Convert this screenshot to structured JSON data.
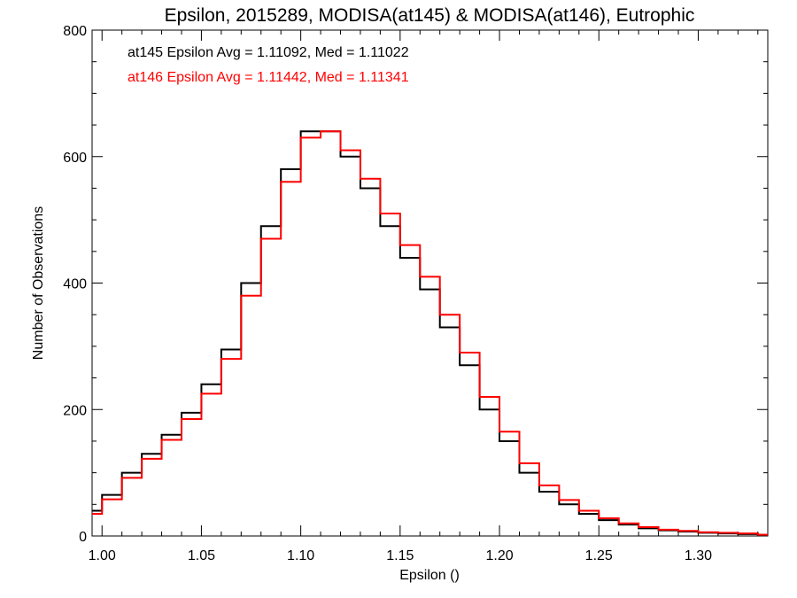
{
  "chart_data": {
    "type": "line",
    "title": "Epsilon, 2015289, MODISA(at145) & MODISA(at146), Eutrophic",
    "xlabel": "Epsilon ()",
    "ylabel": "Number of Observations",
    "xlim": [
      0.995,
      1.335
    ],
    "ylim": [
      0,
      800
    ],
    "x_ticks": [
      1.0,
      1.05,
      1.1,
      1.15,
      1.2,
      1.25,
      1.3
    ],
    "x_tick_labels": [
      "1.00",
      "1.05",
      "1.10",
      "1.15",
      "1.20",
      "1.25",
      "1.30"
    ],
    "y_ticks": [
      0,
      200,
      400,
      600,
      800
    ],
    "y_tick_labels": [
      "0",
      "200",
      "400",
      "600",
      "800"
    ],
    "grid": false,
    "bin_width": 0.01,
    "series": [
      {
        "name": "at145",
        "color": "#000000",
        "annotation": "at145 Epsilon Avg = 1.11092, Med = 1.11022",
        "x": [
          0.995,
          1.005,
          1.015,
          1.025,
          1.035,
          1.045,
          1.055,
          1.065,
          1.075,
          1.085,
          1.095,
          1.105,
          1.115,
          1.125,
          1.135,
          1.145,
          1.155,
          1.165,
          1.175,
          1.185,
          1.195,
          1.205,
          1.215,
          1.225,
          1.235,
          1.245,
          1.255,
          1.265,
          1.275,
          1.285,
          1.295,
          1.305,
          1.315,
          1.325,
          1.335
        ],
        "y": [
          40,
          65,
          100,
          130,
          160,
          195,
          240,
          295,
          400,
          490,
          580,
          640,
          640,
          600,
          550,
          490,
          440,
          390,
          330,
          270,
          200,
          150,
          100,
          70,
          50,
          35,
          25,
          18,
          12,
          9,
          7,
          5,
          4,
          3,
          2
        ]
      },
      {
        "name": "at146",
        "color": "#ff0000",
        "annotation": "at146 Epsilon Avg = 1.11442, Med = 1.11341",
        "x": [
          0.995,
          1.005,
          1.015,
          1.025,
          1.035,
          1.045,
          1.055,
          1.065,
          1.075,
          1.085,
          1.095,
          1.105,
          1.115,
          1.125,
          1.135,
          1.145,
          1.155,
          1.165,
          1.175,
          1.185,
          1.195,
          1.205,
          1.215,
          1.225,
          1.235,
          1.245,
          1.255,
          1.265,
          1.275,
          1.285,
          1.295,
          1.305,
          1.315,
          1.325,
          1.335
        ],
        "y": [
          35,
          58,
          92,
          122,
          152,
          185,
          225,
          280,
          380,
          470,
          560,
          630,
          640,
          610,
          565,
          510,
          460,
          410,
          350,
          290,
          220,
          165,
          115,
          80,
          57,
          40,
          28,
          20,
          14,
          10,
          8,
          6,
          5,
          4,
          2
        ]
      }
    ]
  }
}
